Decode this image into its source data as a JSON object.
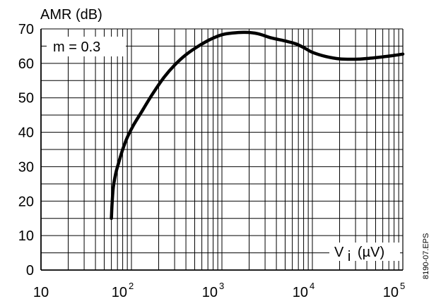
{
  "chart_data": {
    "type": "line",
    "ylabel": "AMR (dB)",
    "x_axis": {
      "scale": "log",
      "range": [
        10,
        100000
      ],
      "tick_labels": [
        {
          "value": 10,
          "base": "10",
          "exp": ""
        },
        {
          "value": 100,
          "base": "10",
          "exp": "2"
        },
        {
          "value": 1000,
          "base": "10",
          "exp": "3"
        },
        {
          "value": 10000,
          "base": "10",
          "exp": "4"
        },
        {
          "value": 100000,
          "base": "10",
          "exp": "5"
        }
      ],
      "label": {
        "base": "V",
        "sub": "i",
        "unit": "(µV)"
      }
    },
    "y_axis": {
      "range": [
        0,
        70
      ],
      "ticks": [
        0,
        10,
        20,
        30,
        40,
        50,
        60,
        70
      ],
      "minor_step": 5
    },
    "grid": true,
    "annotation": "m = 0.3",
    "side_label": "8190-07.EPS",
    "series": [
      {
        "points": [
          [
            60,
            15
          ],
          [
            61,
            19
          ],
          [
            63,
            24
          ],
          [
            67,
            28
          ],
          [
            72,
            31
          ],
          [
            80,
            35
          ],
          [
            90,
            38.5
          ],
          [
            105,
            42
          ],
          [
            130,
            46
          ],
          [
            170,
            51
          ],
          [
            230,
            56
          ],
          [
            300,
            59.5
          ],
          [
            400,
            62.5
          ],
          [
            550,
            65
          ],
          [
            750,
            67
          ],
          [
            1000,
            68.3
          ],
          [
            1300,
            68.8
          ],
          [
            1800,
            69
          ],
          [
            2500,
            68.6
          ],
          [
            3500,
            67.4
          ],
          [
            5000,
            66.5
          ],
          [
            6500,
            65.7
          ],
          [
            8000,
            64.6
          ],
          [
            10000,
            63.2
          ],
          [
            14000,
            62
          ],
          [
            20000,
            61.3
          ],
          [
            30000,
            61.2
          ],
          [
            40000,
            61.4
          ],
          [
            60000,
            61.9
          ],
          [
            80000,
            62.3
          ],
          [
            100000,
            62.7
          ]
        ]
      }
    ]
  }
}
